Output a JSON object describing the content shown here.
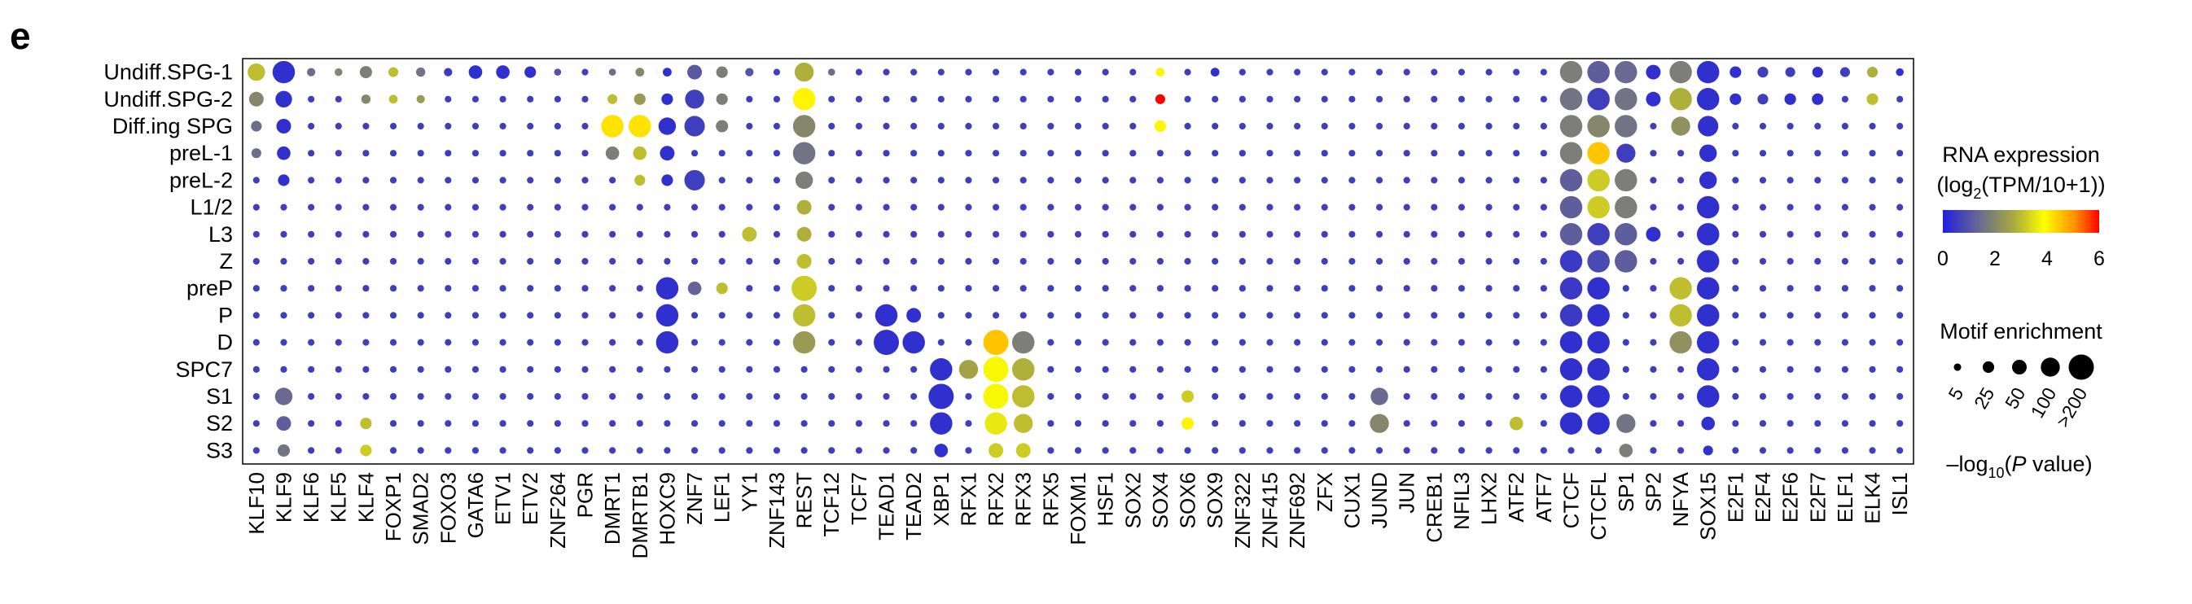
{
  "panel_letter": "e",
  "legend": {
    "color_title_line1": "RNA expression",
    "color_title_line2_prefix": "(log",
    "color_title_line2_sub": "2",
    "color_title_line2_suffix": "(TPM/10+1))",
    "color_ticks": [
      "0",
      "2",
      "4",
      "6"
    ],
    "size_title": "Motif enrichment",
    "size_ticks": [
      "5",
      "25",
      "50",
      "100",
      ">200"
    ],
    "size_axis_prefix": "–log",
    "size_axis_sub": "10",
    "size_axis_suffix_open": "(",
    "size_axis_italic": "P",
    "size_axis_suffix": " value)",
    "colors": {
      "low": "#2020e0",
      "mid_low": "#6e6e8c",
      "mid": "#a8a840",
      "mid_high": "#ffff00",
      "high": "#ff8c00",
      "max": "#ff0000"
    }
  },
  "chart_data": {
    "type": "dot",
    "rows": [
      "Undiff.SPG-1",
      "Undiff.SPG-2",
      "Diff.ing SPG",
      "preL-1",
      "preL-2",
      "L1/2",
      "L3",
      "Z",
      "preP",
      "P",
      "D",
      "SPC7",
      "S1",
      "S2",
      "S3"
    ],
    "columns": [
      "KLF10",
      "KLF9",
      "KLF6",
      "KLF5",
      "KLF4",
      "FOXP1",
      "SMAD2",
      "FOXO3",
      "GATA6",
      "ETV1",
      "ETV2",
      "ZNF264",
      "PGR",
      "DMRT1",
      "DMRTB1",
      "HOXC9",
      "ZNF7",
      "LEF1",
      "YY1",
      "ZNF143",
      "REST",
      "TCF12",
      "TCF7",
      "TEAD1",
      "TEAD2",
      "XBP1",
      "RFX1",
      "RFX2",
      "RFX3",
      "RFX5",
      "FOXM1",
      "HSF1",
      "SOX2",
      "SOX4",
      "SOX6",
      "SOX9",
      "ZNF322",
      "ZNF415",
      "ZNF692",
      "ZFX",
      "CUX1",
      "JUND",
      "JUN",
      "CREB1",
      "NFIL3",
      "LHX2",
      "ATF2",
      "ATF7",
      "CTCF",
      "CTCFL",
      "SP1",
      "SP2",
      "NFYA",
      "SOX15",
      "E2F1",
      "E2F4",
      "E2F6",
      "E2F7",
      "ELF1",
      "ELK4",
      "ISL1"
    ],
    "color_scale": {
      "label": "RNA expression (log2(TPM/10+1))",
      "min": 0,
      "max": 6,
      "ticks": [
        0,
        2,
        4,
        6
      ]
    },
    "size_scale": {
      "label": "–log10(P value)",
      "ticks": [
        5,
        25,
        50,
        100,
        200
      ],
      "max_label": ">200"
    },
    "points": [
      {
        "x": "KLF10",
        "y": "Undiff.SPG-1",
        "expr": 3.0,
        "p": 80
      },
      {
        "x": "KLF9",
        "y": "Undiff.SPG-1",
        "expr": 0.3,
        "p": 150
      },
      {
        "x": "KLF6",
        "y": "Undiff.SPG-1",
        "expr": 1.5,
        "p": 8
      },
      {
        "x": "KLF5",
        "y": "Undiff.SPG-1",
        "expr": 2.0,
        "p": 6
      },
      {
        "x": "KLF4",
        "y": "Undiff.SPG-1",
        "expr": 1.8,
        "p": 30
      },
      {
        "x": "FOXP1",
        "y": "Undiff.SPG-1",
        "expr": 3.0,
        "p": 15
      },
      {
        "x": "SMAD2",
        "y": "Undiff.SPG-1",
        "expr": 1.6,
        "p": 12
      },
      {
        "x": "FOXO3",
        "y": "Undiff.SPG-1",
        "expr": 0.5,
        "p": 8
      },
      {
        "x": "GATA6",
        "y": "Undiff.SPG-1",
        "expr": 0.3,
        "p": 40
      },
      {
        "x": "ETV1",
        "y": "Undiff.SPG-1",
        "expr": 0.3,
        "p": 40
      },
      {
        "x": "ETV2",
        "y": "Undiff.SPG-1",
        "expr": 0.3,
        "p": 25
      },
      {
        "x": "ZNF264",
        "y": "Undiff.SPG-1",
        "expr": 1.0,
        "p": 4
      },
      {
        "x": "DMRT1",
        "y": "Undiff.SPG-1",
        "expr": 1.5,
        "p": 4
      },
      {
        "x": "DMRTB1",
        "y": "Undiff.SPG-1",
        "expr": 2.0,
        "p": 10
      },
      {
        "x": "HOXC9",
        "y": "Undiff.SPG-1",
        "expr": 0.3,
        "p": 10
      },
      {
        "x": "ZNF7",
        "y": "Undiff.SPG-1",
        "expr": 1.1,
        "p": 50
      },
      {
        "x": "LEF1",
        "y": "Undiff.SPG-1",
        "expr": 1.8,
        "p": 25
      },
      {
        "x": "YY1",
        "y": "Undiff.SPG-1",
        "expr": 1.0,
        "p": 8
      },
      {
        "x": "REST",
        "y": "Undiff.SPG-1",
        "expr": 2.8,
        "p": 100
      },
      {
        "x": "TCF12",
        "y": "Undiff.SPG-1",
        "expr": 1.5,
        "p": 4
      },
      {
        "x": "SOX4",
        "y": "Undiff.SPG-1",
        "expr": 3.8,
        "p": 10
      },
      {
        "x": "SOX9",
        "y": "Undiff.SPG-1",
        "expr": 0.3,
        "p": 10
      },
      {
        "x": "CTCF",
        "y": "Undiff.SPG-1",
        "expr": 1.8,
        "p": 150
      },
      {
        "x": "CTCFL",
        "y": "Undiff.SPG-1",
        "expr": 1.2,
        "p": 150
      },
      {
        "x": "SP1",
        "y": "Undiff.SPG-1",
        "expr": 1.4,
        "p": 150
      },
      {
        "x": "SP2",
        "y": "Undiff.SPG-1",
        "expr": 0.3,
        "p": 50
      },
      {
        "x": "NFYA",
        "y": "Undiff.SPG-1",
        "expr": 1.8,
        "p": 150
      },
      {
        "x": "SOX15",
        "y": "Undiff.SPG-1",
        "expr": 0.3,
        "p": 150
      },
      {
        "x": "E2F1",
        "y": "Undiff.SPG-1",
        "expr": 0.3,
        "p": 25
      },
      {
        "x": "E2F4",
        "y": "Undiff.SPG-1",
        "expr": 0.6,
        "p": 20
      },
      {
        "x": "E2F6",
        "y": "Undiff.SPG-1",
        "expr": 0.6,
        "p": 15
      },
      {
        "x": "E2F7",
        "y": "Undiff.SPG-1",
        "expr": 0.3,
        "p": 20
      },
      {
        "x": "ELF1",
        "y": "Undiff.SPG-1",
        "expr": 0.6,
        "p": 15
      },
      {
        "x": "ELK4",
        "y": "Undiff.SPG-1",
        "expr": 2.8,
        "p": 20
      },
      {
        "x": "ISL1",
        "y": "Undiff.SPG-1",
        "expr": 0.3,
        "p": 6
      },
      {
        "x": "KLF10",
        "y": "Undiff.SPG-2",
        "expr": 2.0,
        "p": 50
      },
      {
        "x": "KLF9",
        "y": "Undiff.SPG-2",
        "expr": 0.3,
        "p": 70
      },
      {
        "x": "KLF4",
        "y": "Undiff.SPG-2",
        "expr": 2.0,
        "p": 12
      },
      {
        "x": "FOXP1",
        "y": "Undiff.SPG-2",
        "expr": 3.0,
        "p": 10
      },
      {
        "x": "SMAD2",
        "y": "Undiff.SPG-2",
        "expr": 2.4,
        "p": 8
      },
      {
        "x": "DMRT1",
        "y": "Undiff.SPG-2",
        "expr": 3.0,
        "p": 15
      },
      {
        "x": "DMRTB1",
        "y": "Undiff.SPG-2",
        "expr": 2.4,
        "p": 25
      },
      {
        "x": "HOXC9",
        "y": "Undiff.SPG-2",
        "expr": 0.3,
        "p": 25
      },
      {
        "x": "ZNF7",
        "y": "Undiff.SPG-2",
        "expr": 0.6,
        "p": 100
      },
      {
        "x": "LEF1",
        "y": "Undiff.SPG-2",
        "expr": 1.8,
        "p": 25
      },
      {
        "x": "REST",
        "y": "Undiff.SPG-2",
        "expr": 4.0,
        "p": 150
      },
      {
        "x": "SOX4",
        "y": "Undiff.SPG-2",
        "expr": 6.0,
        "p": 15
      },
      {
        "x": "CTCF",
        "y": "Undiff.SPG-2",
        "expr": 1.6,
        "p": 150
      },
      {
        "x": "CTCFL",
        "y": "Undiff.SPG-2",
        "expr": 0.6,
        "p": 150
      },
      {
        "x": "SP1",
        "y": "Undiff.SPG-2",
        "expr": 1.6,
        "p": 150
      },
      {
        "x": "SP2",
        "y": "Undiff.SPG-2",
        "expr": 0.3,
        "p": 50
      },
      {
        "x": "NFYA",
        "y": "Undiff.SPG-2",
        "expr": 2.8,
        "p": 150
      },
      {
        "x": "SOX15",
        "y": "Undiff.SPG-2",
        "expr": 0.3,
        "p": 150
      },
      {
        "x": "E2F1",
        "y": "Undiff.SPG-2",
        "expr": 0.3,
        "p": 25
      },
      {
        "x": "E2F4",
        "y": "Undiff.SPG-2",
        "expr": 0.6,
        "p": 20
      },
      {
        "x": "E2F6",
        "y": "Undiff.SPG-2",
        "expr": 0.3,
        "p": 25
      },
      {
        "x": "E2F7",
        "y": "Undiff.SPG-2",
        "expr": 0.3,
        "p": 25
      },
      {
        "x": "ELK4",
        "y": "Undiff.SPG-2",
        "expr": 3.0,
        "p": 25
      },
      {
        "x": "KLF10",
        "y": "Diff.ing SPG",
        "expr": 1.5,
        "p": 20
      },
      {
        "x": "KLF9",
        "y": "Diff.ing SPG",
        "expr": 0.3,
        "p": 50
      },
      {
        "x": "DMRT1",
        "y": "Diff.ing SPG",
        "expr": 4.2,
        "p": 150
      },
      {
        "x": "DMRTB1",
        "y": "Diff.ing SPG",
        "expr": 4.2,
        "p": 150
      },
      {
        "x": "HOXC9",
        "y": "Diff.ing SPG",
        "expr": 0.3,
        "p": 80
      },
      {
        "x": "ZNF7",
        "y": "Diff.ing SPG",
        "expr": 0.6,
        "p": 120
      },
      {
        "x": "LEF1",
        "y": "Diff.ing SPG",
        "expr": 1.8,
        "p": 30
      },
      {
        "x": "REST",
        "y": "Diff.ing SPG",
        "expr": 2.0,
        "p": 150
      },
      {
        "x": "SOX4",
        "y": "Diff.ing SPG",
        "expr": 4.0,
        "p": 25
      },
      {
        "x": "CTCF",
        "y": "Diff.ing SPG",
        "expr": 1.8,
        "p": 150
      },
      {
        "x": "CTCFL",
        "y": "Diff.ing SPG",
        "expr": 2.0,
        "p": 150
      },
      {
        "x": "SP1",
        "y": "Diff.ing SPG",
        "expr": 1.6,
        "p": 150
      },
      {
        "x": "NFYA",
        "y": "Diff.ing SPG",
        "expr": 2.2,
        "p": 100
      },
      {
        "x": "SOX15",
        "y": "Diff.ing SPG",
        "expr": 0.3,
        "p": 120
      },
      {
        "x": "KLF10",
        "y": "preL-1",
        "expr": 1.5,
        "p": 15
      },
      {
        "x": "KLF9",
        "y": "preL-1",
        "expr": 0.3,
        "p": 40
      },
      {
        "x": "DMRT1",
        "y": "preL-1",
        "expr": 1.8,
        "p": 40
      },
      {
        "x": "DMRTB1",
        "y": "preL-1",
        "expr": 3.0,
        "p": 40
      },
      {
        "x": "HOXC9",
        "y": "preL-1",
        "expr": 0.3,
        "p": 50
      },
      {
        "x": "REST",
        "y": "preL-1",
        "expr": 1.6,
        "p": 150
      },
      {
        "x": "CTCF",
        "y": "preL-1",
        "expr": 1.8,
        "p": 150
      },
      {
        "x": "CTCFL",
        "y": "preL-1",
        "expr": 4.5,
        "p": 150
      },
      {
        "x": "SP1",
        "y": "preL-1",
        "expr": 0.6,
        "p": 100
      },
      {
        "x": "SOX15",
        "y": "preL-1",
        "expr": 0.3,
        "p": 80
      },
      {
        "x": "KLF9",
        "y": "preL-2",
        "expr": 0.3,
        "p": 25
      },
      {
        "x": "DMRTB1",
        "y": "preL-2",
        "expr": 3.0,
        "p": 20
      },
      {
        "x": "HOXC9",
        "y": "preL-2",
        "expr": 0.3,
        "p": 25
      },
      {
        "x": "ZNF7",
        "y": "preL-2",
        "expr": 0.6,
        "p": 120
      },
      {
        "x": "REST",
        "y": "preL-2",
        "expr": 1.8,
        "p": 80
      },
      {
        "x": "CTCF",
        "y": "preL-2",
        "expr": 1.2,
        "p": 150
      },
      {
        "x": "CTCFL",
        "y": "preL-2",
        "expr": 3.2,
        "p": 150
      },
      {
        "x": "SP1",
        "y": "preL-2",
        "expr": 1.8,
        "p": 150
      },
      {
        "x": "SOX15",
        "y": "preL-2",
        "expr": 0.3,
        "p": 80
      },
      {
        "x": "REST",
        "y": "L1/2",
        "expr": 2.8,
        "p": 50
      },
      {
        "x": "CTCF",
        "y": "L1/2",
        "expr": 1.2,
        "p": 150
      },
      {
        "x": "CTCFL",
        "y": "L1/2",
        "expr": 3.2,
        "p": 150
      },
      {
        "x": "SP1",
        "y": "L1/2",
        "expr": 1.8,
        "p": 150
      },
      {
        "x": "SOX15",
        "y": "L1/2",
        "expr": 0.3,
        "p": 150
      },
      {
        "x": "YY1",
        "y": "L3",
        "expr": 3.0,
        "p": 50
      },
      {
        "x": "REST",
        "y": "L3",
        "expr": 2.8,
        "p": 50
      },
      {
        "x": "CTCF",
        "y": "L3",
        "expr": 1.2,
        "p": 150
      },
      {
        "x": "CTCFL",
        "y": "L3",
        "expr": 0.6,
        "p": 150
      },
      {
        "x": "SP1",
        "y": "L3",
        "expr": 1.2,
        "p": 150
      },
      {
        "x": "SP2",
        "y": "L3",
        "expr": 0.3,
        "p": 50
      },
      {
        "x": "SOX15",
        "y": "L3",
        "expr": 0.3,
        "p": 150
      },
      {
        "x": "REST",
        "y": "Z",
        "expr": 3.0,
        "p": 50
      },
      {
        "x": "CTCF",
        "y": "Z",
        "expr": 0.5,
        "p": 150
      },
      {
        "x": "CTCFL",
        "y": "Z",
        "expr": 0.8,
        "p": 150
      },
      {
        "x": "SP1",
        "y": "Z",
        "expr": 1.2,
        "p": 150
      },
      {
        "x": "SOX15",
        "y": "Z",
        "expr": 0.3,
        "p": 150
      },
      {
        "x": "HOXC9",
        "y": "preP",
        "expr": 0.3,
        "p": 150
      },
      {
        "x": "ZNF7",
        "y": "preP",
        "expr": 1.3,
        "p": 40
      },
      {
        "x": "LEF1",
        "y": "preP",
        "expr": 3.0,
        "p": 25
      },
      {
        "x": "REST",
        "y": "preP",
        "expr": 3.2,
        "p": 200
      },
      {
        "x": "CTCF",
        "y": "preP",
        "expr": 0.5,
        "p": 150
      },
      {
        "x": "CTCFL",
        "y": "preP",
        "expr": 0.3,
        "p": 150
      },
      {
        "x": "NFYA",
        "y": "preP",
        "expr": 3.0,
        "p": 150
      },
      {
        "x": "SOX15",
        "y": "preP",
        "expr": 0.3,
        "p": 150
      },
      {
        "x": "HOXC9",
        "y": "P",
        "expr": 0.3,
        "p": 150
      },
      {
        "x": "REST",
        "y": "P",
        "expr": 3.0,
        "p": 150
      },
      {
        "x": "TEAD1",
        "y": "P",
        "expr": 0.3,
        "p": 150
      },
      {
        "x": "TEAD2",
        "y": "P",
        "expr": 0.3,
        "p": 50
      },
      {
        "x": "CTCF",
        "y": "P",
        "expr": 0.5,
        "p": 150
      },
      {
        "x": "CTCFL",
        "y": "P",
        "expr": 0.3,
        "p": 150
      },
      {
        "x": "NFYA",
        "y": "P",
        "expr": 3.0,
        "p": 150
      },
      {
        "x": "SOX15",
        "y": "P",
        "expr": 0.3,
        "p": 150
      },
      {
        "x": "HOXC9",
        "y": "D",
        "expr": 0.3,
        "p": 150
      },
      {
        "x": "REST",
        "y": "D",
        "expr": 2.4,
        "p": 150
      },
      {
        "x": "TEAD1",
        "y": "D",
        "expr": 0.3,
        "p": 200
      },
      {
        "x": "TEAD2",
        "y": "D",
        "expr": 0.3,
        "p": 150
      },
      {
        "x": "RFX2",
        "y": "D",
        "expr": 4.5,
        "p": 200
      },
      {
        "x": "RFX3",
        "y": "D",
        "expr": 1.8,
        "p": 150
      },
      {
        "x": "CTCF",
        "y": "D",
        "expr": 0.3,
        "p": 150
      },
      {
        "x": "CTCFL",
        "y": "D",
        "expr": 0.3,
        "p": 150
      },
      {
        "x": "NFYA",
        "y": "D",
        "expr": 2.2,
        "p": 150
      },
      {
        "x": "SOX15",
        "y": "D",
        "expr": 0.3,
        "p": 150
      },
      {
        "x": "XBP1",
        "y": "SPC7",
        "expr": 0.3,
        "p": 150
      },
      {
        "x": "RFX1",
        "y": "SPC7",
        "expr": 2.6,
        "p": 100
      },
      {
        "x": "RFX2",
        "y": "SPC7",
        "expr": 3.8,
        "p": 200
      },
      {
        "x": "RFX3",
        "y": "SPC7",
        "expr": 2.8,
        "p": 150
      },
      {
        "x": "CTCF",
        "y": "SPC7",
        "expr": 0.3,
        "p": 150
      },
      {
        "x": "CTCFL",
        "y": "SPC7",
        "expr": 0.3,
        "p": 150
      },
      {
        "x": "SOX15",
        "y": "SPC7",
        "expr": 0.3,
        "p": 150
      },
      {
        "x": "KLF9",
        "y": "S1",
        "expr": 1.4,
        "p": 80
      },
      {
        "x": "XBP1",
        "y": "S1",
        "expr": 0.3,
        "p": 200
      },
      {
        "x": "RFX2",
        "y": "S1",
        "expr": 3.8,
        "p": 200
      },
      {
        "x": "RFX3",
        "y": "S1",
        "expr": 3.0,
        "p": 150
      },
      {
        "x": "SOX6",
        "y": "S1",
        "expr": 3.2,
        "p": 30
      },
      {
        "x": "JUND",
        "y": "S1",
        "expr": 1.4,
        "p": 80
      },
      {
        "x": "CTCF",
        "y": "S1",
        "expr": 0.3,
        "p": 150
      },
      {
        "x": "CTCFL",
        "y": "S1",
        "expr": 0.3,
        "p": 150
      },
      {
        "x": "SOX15",
        "y": "S1",
        "expr": 0.3,
        "p": 150
      },
      {
        "x": "KLF9",
        "y": "S2",
        "expr": 1.2,
        "p": 50
      },
      {
        "x": "KLF4",
        "y": "S2",
        "expr": 3.0,
        "p": 25
      },
      {
        "x": "XBP1",
        "y": "S2",
        "expr": 0.3,
        "p": 150
      },
      {
        "x": "RFX2",
        "y": "S2",
        "expr": 3.6,
        "p": 150
      },
      {
        "x": "RFX3",
        "y": "S2",
        "expr": 3.0,
        "p": 100
      },
      {
        "x": "SOX6",
        "y": "S2",
        "expr": 4.0,
        "p": 30
      },
      {
        "x": "JUND",
        "y": "S2",
        "expr": 2.0,
        "p": 100
      },
      {
        "x": "ATF2",
        "y": "S2",
        "expr": 3.0,
        "p": 40
      },
      {
        "x": "CTCF",
        "y": "S2",
        "expr": 0.3,
        "p": 150
      },
      {
        "x": "CTCFL",
        "y": "S2",
        "expr": 0.3,
        "p": 150
      },
      {
        "x": "SP1",
        "y": "S2",
        "expr": 1.6,
        "p": 100
      },
      {
        "x": "SOX15",
        "y": "S2",
        "expr": 0.3,
        "p": 40
      },
      {
        "x": "KLF9",
        "y": "S3",
        "expr": 1.6,
        "p": 30
      },
      {
        "x": "KLF4",
        "y": "S3",
        "expr": 3.2,
        "p": 25
      },
      {
        "x": "XBP1",
        "y": "S3",
        "expr": 0.3,
        "p": 40
      },
      {
        "x": "RFX2",
        "y": "S3",
        "expr": 3.2,
        "p": 50
      },
      {
        "x": "RFX3",
        "y": "S3",
        "expr": 3.2,
        "p": 50
      },
      {
        "x": "SP1",
        "y": "S3",
        "expr": 1.8,
        "p": 40
      },
      {
        "x": "SOX15",
        "y": "S3",
        "expr": 0.3,
        "p": 15
      }
    ]
  }
}
